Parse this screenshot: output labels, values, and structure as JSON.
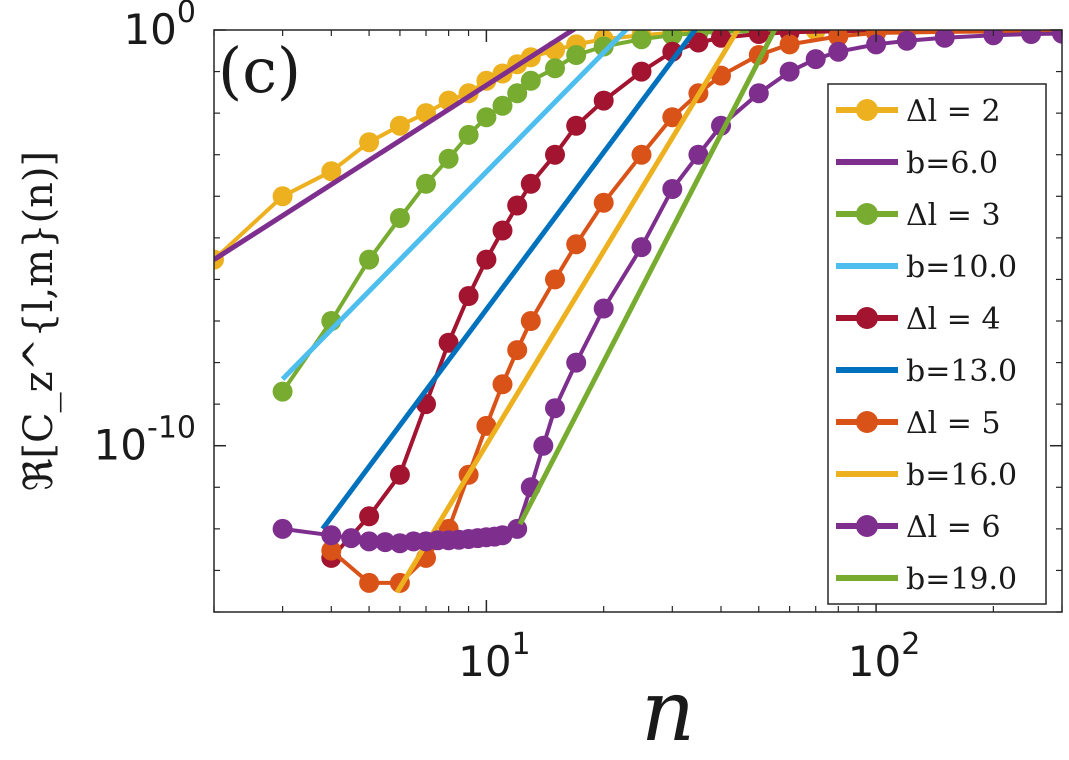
{
  "chart_data": {
    "type": "line",
    "panel_label": "(c)",
    "xlabel": "n",
    "ylabel": "ℜ[C_z^{l,m}(n)]",
    "xscale": "log",
    "yscale": "log",
    "xlim": [
      2,
      300
    ],
    "ylim": [
      1e-14,
      1.0
    ],
    "xticks": [
      {
        "value": 10,
        "base": "10",
        "exp": "1"
      },
      {
        "value": 100,
        "base": "10",
        "exp": "2"
      }
    ],
    "yticks": [
      {
        "value": 1,
        "base": "10",
        "exp": "0"
      },
      {
        "value": 1e-10,
        "base": "10",
        "exp": "-10"
      }
    ],
    "legend_position": "right",
    "series": [
      {
        "name": "Δl = 2",
        "color": "#EDB120",
        "style": "line-markers",
        "x": [
          2,
          3,
          4,
          5,
          6,
          7,
          8,
          9,
          10,
          11,
          12,
          13,
          15,
          17,
          20,
          25,
          30,
          35,
          40,
          50,
          60,
          70,
          80,
          100,
          120,
          150,
          200,
          250,
          300
        ],
        "y": [
          3e-06,
          0.0001,
          0.0004,
          0.002,
          0.005,
          0.01,
          0.02,
          0.03,
          0.06,
          0.09,
          0.15,
          0.22,
          0.33,
          0.45,
          0.6,
          0.75,
          0.85,
          0.9,
          0.95,
          0.97,
          0.98,
          0.98,
          0.98,
          0.98,
          0.98,
          0.98,
          0.98,
          0.98,
          0.98
        ]
      },
      {
        "name": "b=6.0",
        "color": "#7E2F8E",
        "style": "line",
        "x": [
          2,
          20
        ],
        "y": [
          3e-06,
          3.0
        ]
      },
      {
        "name": "Δl = 3",
        "color": "#77AC30",
        "style": "line-markers",
        "x": [
          3,
          4,
          5,
          6,
          7,
          8,
          9,
          10,
          11,
          12,
          13,
          15,
          17,
          20,
          25,
          30,
          35,
          40,
          50,
          60,
          80,
          100,
          150,
          200,
          300
        ],
        "y": [
          2e-09,
          1e-07,
          3e-06,
          3e-05,
          0.0002,
          0.0008,
          0.003,
          0.008,
          0.015,
          0.03,
          0.06,
          0.12,
          0.25,
          0.4,
          0.6,
          0.75,
          0.85,
          0.9,
          0.95,
          0.97,
          0.97,
          0.97,
          0.97,
          0.97,
          0.97
        ]
      },
      {
        "name": "b=10.0",
        "color": "#4DBEEE",
        "style": "line",
        "x": [
          3,
          27
        ],
        "y": [
          4e-09,
          5.0
        ]
      },
      {
        "name": "Δl = 4",
        "color": "#A2142F",
        "style": "line-markers",
        "x": [
          4,
          5,
          6,
          7,
          8,
          9,
          10,
          11,
          12,
          13,
          15,
          17,
          20,
          25,
          30,
          35,
          40,
          50,
          60,
          80,
          100,
          150,
          200,
          300
        ],
        "y": [
          2e-13,
          2e-12,
          2e-11,
          1e-09,
          3e-08,
          4e-07,
          3e-06,
          1.5e-05,
          6e-05,
          0.0002,
          0.001,
          0.005,
          0.02,
          0.1,
          0.3,
          0.5,
          0.65,
          0.8,
          0.88,
          0.93,
          0.95,
          0.96,
          0.96,
          0.96
        ]
      },
      {
        "name": "b=13.0",
        "color": "#0072BD",
        "style": "line",
        "x": [
          3.8,
          39
        ],
        "y": [
          1e-12,
          5.0
        ]
      },
      {
        "name": "Δl = 5",
        "color": "#D95319",
        "style": "line-markers",
        "x": [
          4,
          5,
          6,
          7,
          8,
          9,
          10,
          11,
          12,
          13,
          15,
          17,
          20,
          25,
          30,
          35,
          40,
          50,
          60,
          80,
          100,
          150,
          200,
          300
        ],
        "y": [
          3e-13,
          5e-14,
          5e-14,
          2e-13,
          1e-12,
          2e-11,
          3e-10,
          3e-09,
          2e-08,
          1e-07,
          1e-06,
          7e-06,
          7e-05,
          0.001,
          0.008,
          0.03,
          0.08,
          0.25,
          0.45,
          0.7,
          0.85,
          0.9,
          0.92,
          0.93
        ]
      },
      {
        "name": "b=16.0",
        "color": "#EDB120",
        "style": "line",
        "x": [
          5.9,
          49
        ],
        "y": [
          3e-14,
          5.0
        ]
      },
      {
        "name": "Δl = 6",
        "color": "#7E2F8E",
        "style": "line-markers",
        "x": [
          3,
          4,
          4.5,
          5,
          5.5,
          6,
          6.5,
          7,
          7.5,
          8,
          8.5,
          9,
          9.5,
          10,
          10.5,
          11,
          12,
          13,
          14,
          15,
          17,
          20,
          25,
          30,
          35,
          40,
          50,
          60,
          70,
          80,
          100,
          120,
          150,
          200,
          250,
          300
        ],
        "y": [
          1e-12,
          7e-13,
          6e-13,
          5e-13,
          4.8e-13,
          4.5e-13,
          5e-13,
          5e-13,
          5.3e-13,
          5.3e-13,
          5.5e-13,
          5.7e-13,
          6e-13,
          6.3e-13,
          6.5e-13,
          7e-13,
          1e-12,
          1e-11,
          1e-10,
          8e-10,
          1e-08,
          2e-07,
          6e-06,
          0.00015,
          0.001,
          0.005,
          0.03,
          0.1,
          0.2,
          0.3,
          0.45,
          0.55,
          0.65,
          0.75,
          0.8,
          0.82
        ]
      },
      {
        "name": "b=19.0",
        "color": "#77AC30",
        "style": "line",
        "x": [
          12.2,
          60
        ],
        "y": [
          1.3e-12,
          5.0
        ]
      }
    ]
  }
}
